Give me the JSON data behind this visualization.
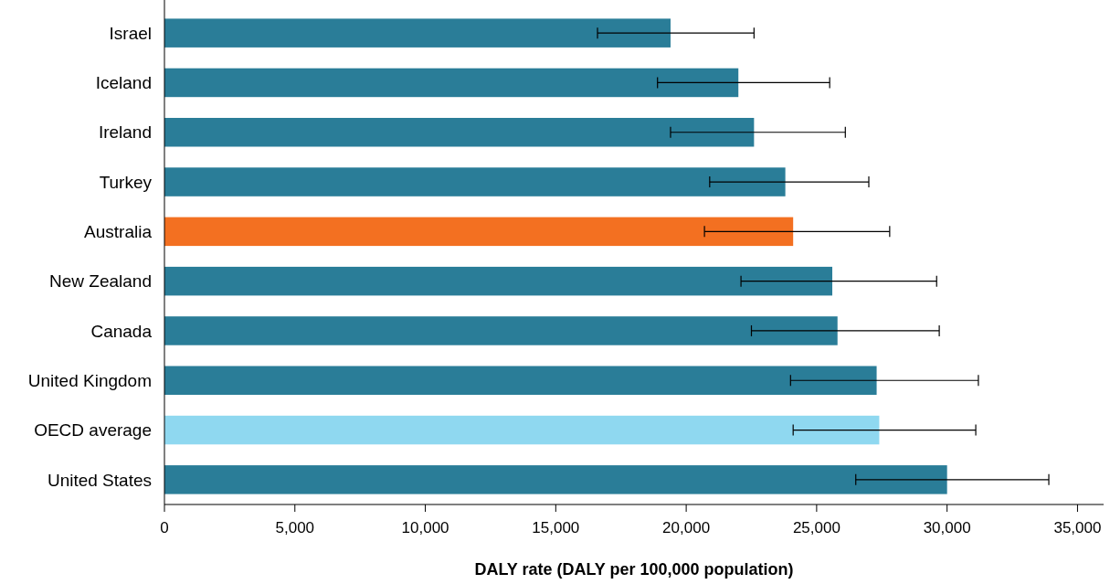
{
  "chart_data": {
    "type": "bar",
    "orientation": "horizontal",
    "xlabel": "DALY rate (DALY per 100,000 population)",
    "categories": [
      "Israel",
      "Iceland",
      "Ireland",
      "Turkey",
      "Australia",
      "New Zealand",
      "Canada",
      "United Kingdom",
      "OECD average",
      "United States"
    ],
    "values": [
      19400,
      22000,
      22600,
      23800,
      24100,
      25600,
      25800,
      27300,
      27400,
      30000
    ],
    "colors": [
      "#2a7d98",
      "#2a7d98",
      "#2a7d98",
      "#2a7d98",
      "#f37021",
      "#2a7d98",
      "#2a7d98",
      "#2a7d98",
      "#8fd8f0",
      "#2a7d98"
    ],
    "errors": [
      [
        16600,
        22600
      ],
      [
        18900,
        25500
      ],
      [
        19400,
        26100
      ],
      [
        20900,
        27000
      ],
      [
        20700,
        27800
      ],
      [
        22100,
        29600
      ],
      [
        22500,
        29700
      ],
      [
        24000,
        31200
      ],
      [
        24100,
        31100
      ],
      [
        26500,
        33900
      ]
    ],
    "xlim": [
      0,
      36000
    ],
    "xticks": [
      0,
      {
        "value": 5000,
        "label": "5,000"
      },
      {
        "value": 10000,
        "label": "10,000"
      },
      {
        "value": 15000,
        "label": "15,000"
      },
      {
        "value": 20000,
        "label": "20,000"
      },
      {
        "value": 25000,
        "label": "25,000"
      },
      {
        "value": 30000,
        "label": "30,000"
      },
      {
        "value": 35000,
        "label": "35,000"
      }
    ],
    "grid": false
  }
}
